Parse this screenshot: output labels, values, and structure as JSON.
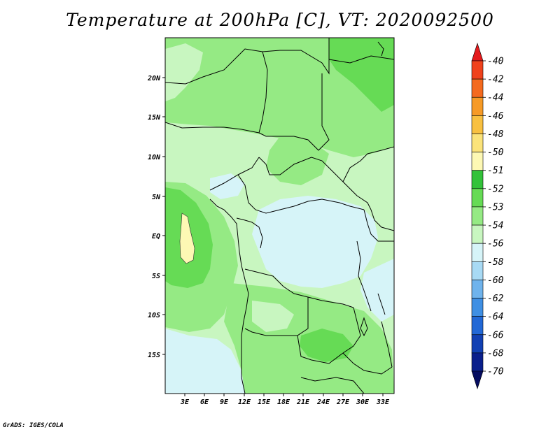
{
  "title": "Temperature at 200hPa [C], VT: 2020092500",
  "credit": "GrADS: IGES/COLA",
  "map": {
    "lat_labels": [
      "20N",
      "15N",
      "10N",
      "5N",
      "EQ",
      "5S",
      "10S",
      "15S"
    ],
    "lon_labels": [
      "3E",
      "6E",
      "9E",
      "12E",
      "15E",
      "18E",
      "21E",
      "24E",
      "27E",
      "30E",
      "33E"
    ]
  },
  "colorbar": {
    "labels": [
      "-40",
      "-42",
      "-44",
      "-46",
      "-48",
      "-50",
      "-51",
      "-52",
      "-53",
      "-54",
      "-56",
      "-58",
      "-60",
      "-62",
      "-64",
      "-66",
      "-68",
      "-70"
    ],
    "colors": [
      "#e41a1c",
      "#f0421c",
      "#f46a1e",
      "#f69a26",
      "#f8c040",
      "#fbe37a",
      "#fdf8b4",
      "#33c23a",
      "#66db55",
      "#95ea84",
      "#c8f6c0",
      "#d6f4f8",
      "#a8daf4",
      "#6fb3ec",
      "#3f8fe3",
      "#2268d6",
      "#1140b3",
      "#0a1f8c",
      "#050c60"
    ]
  },
  "colors": {
    "very_light_green": "#c8f6c0",
    "light_green": "#95ea84",
    "green": "#66db55",
    "dark_green": "#33c23a",
    "pale_yellow": "#fdf8b4",
    "pale_cyan": "#d6f4f8"
  }
}
